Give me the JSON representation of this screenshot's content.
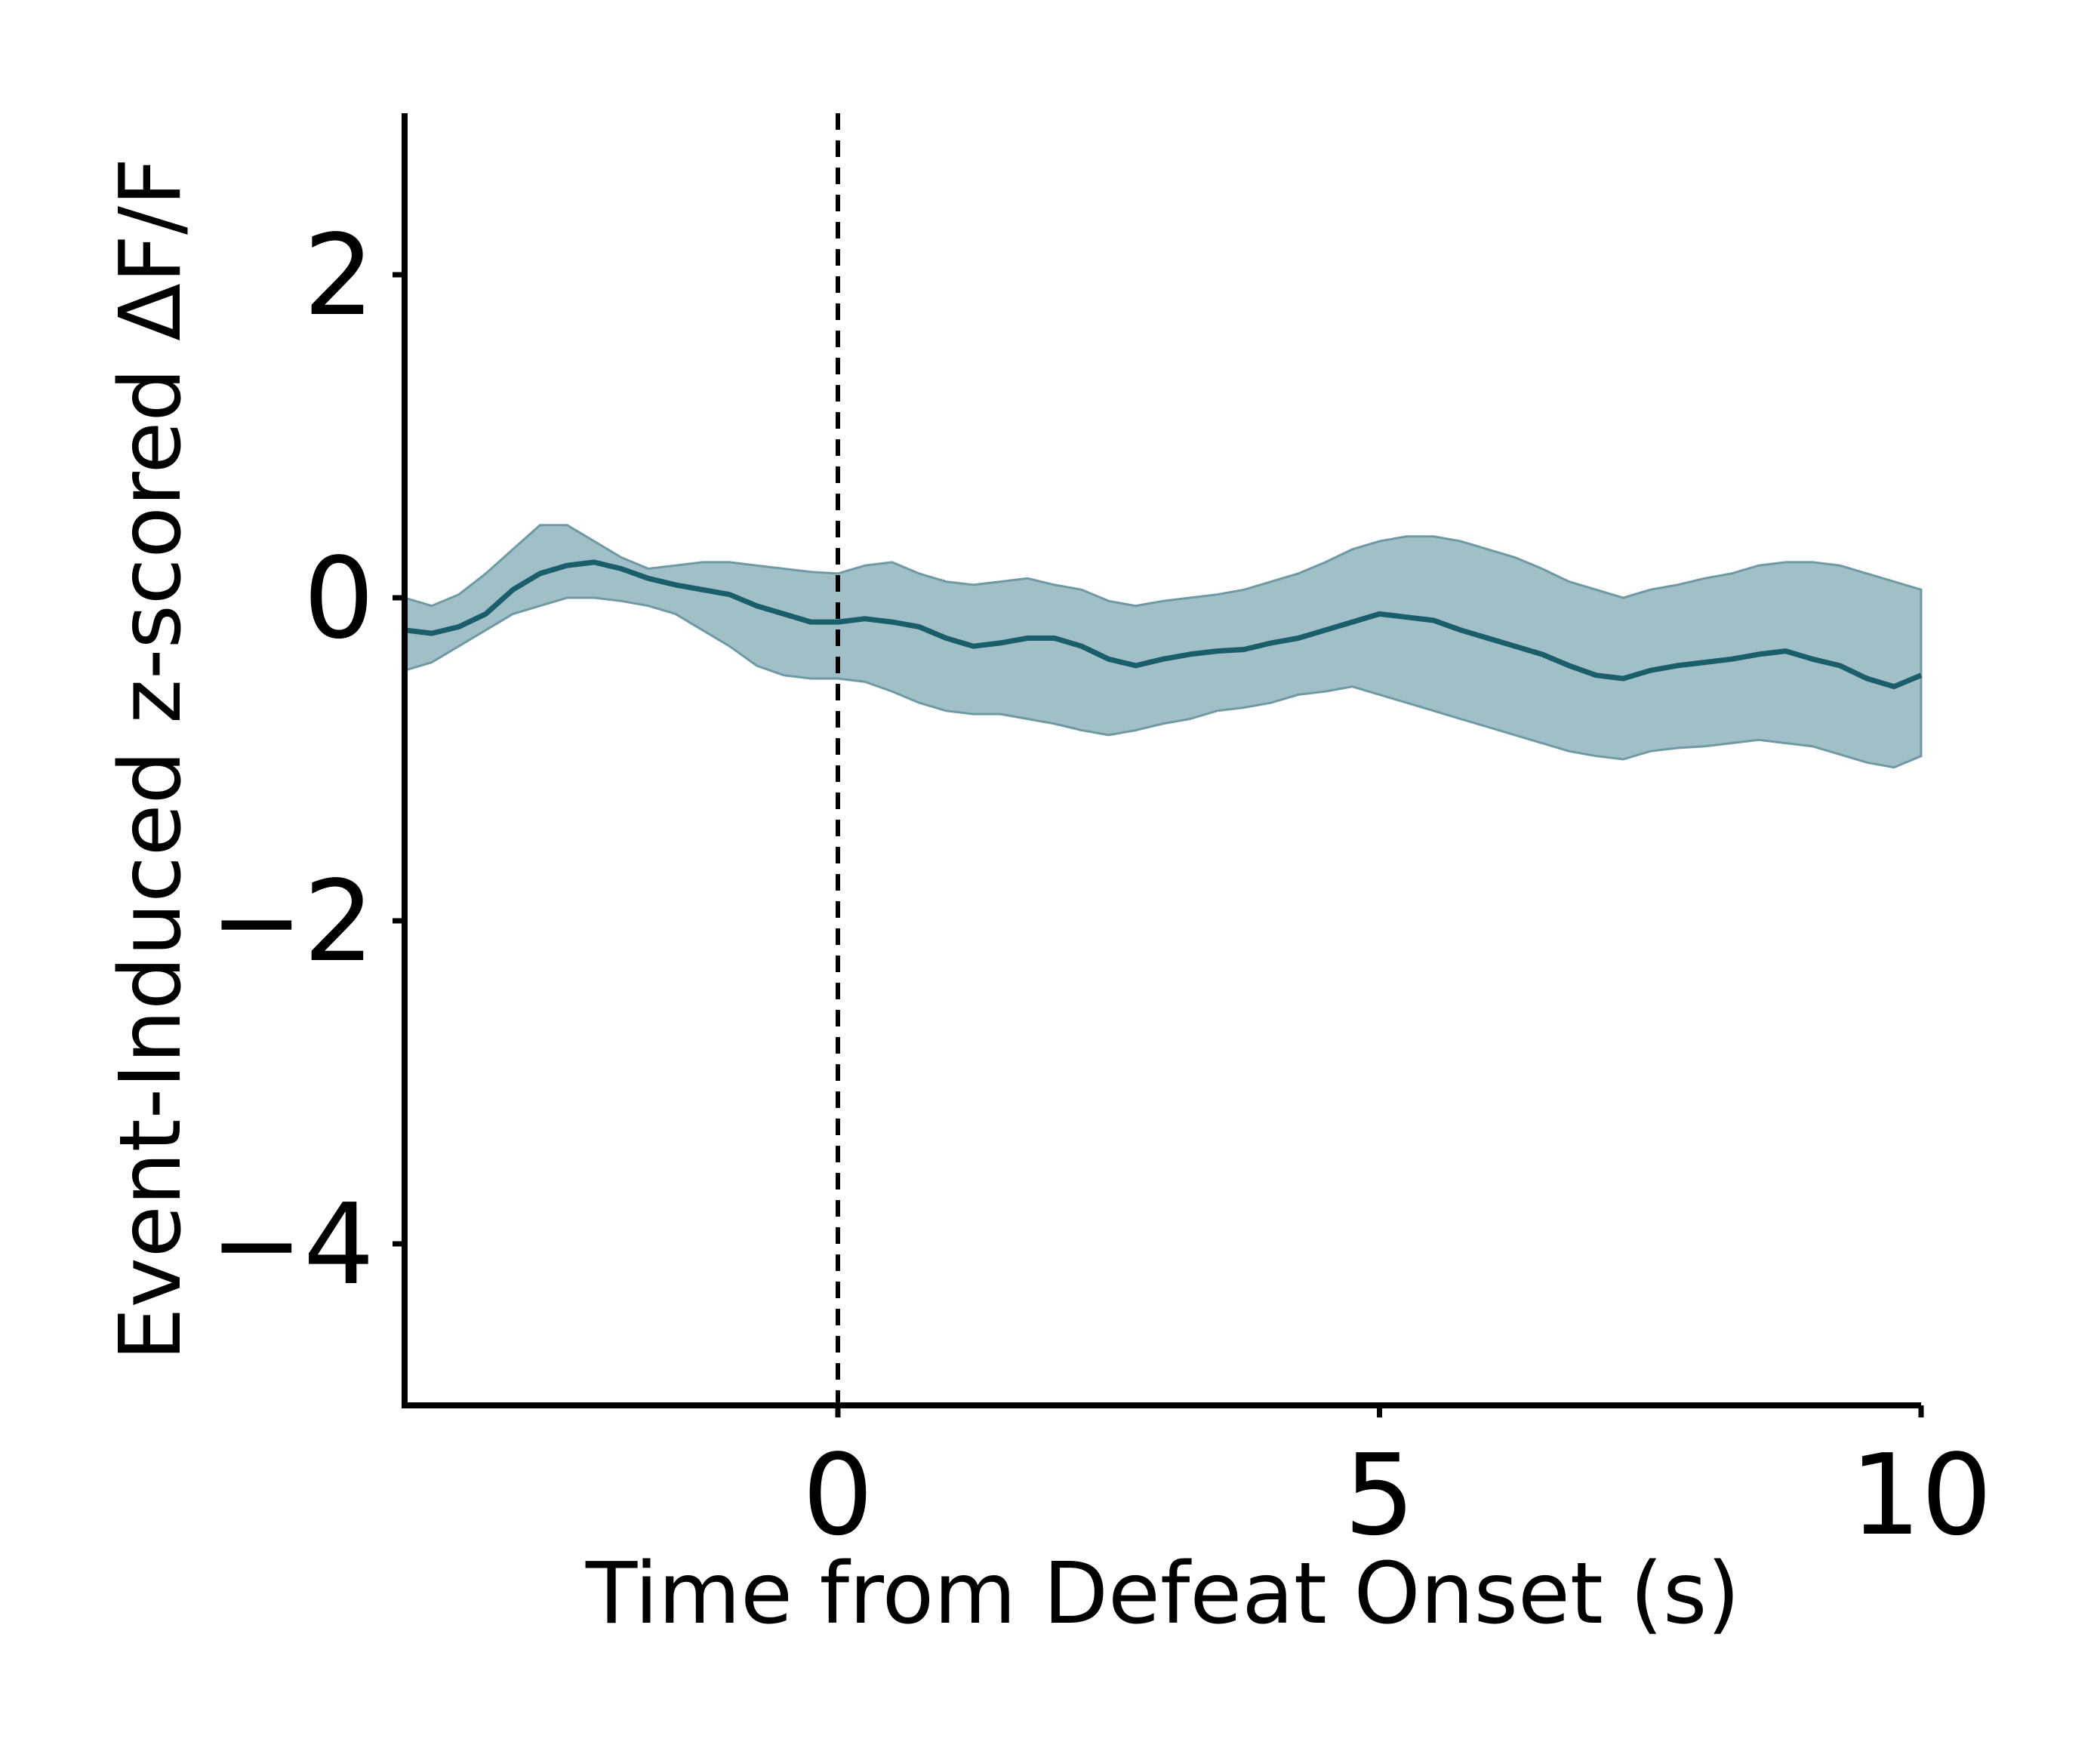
{
  "chart_data": {
    "type": "line",
    "xlabel": "Time from Defeat Onset (s)",
    "ylabel": "Event-Induced z-scored ΔF/F",
    "xlim": [
      -4,
      10
    ],
    "ylim": [
      -5,
      3
    ],
    "xticks": [
      0,
      5,
      10
    ],
    "xtick_labels": [
      "0",
      "5",
      "10"
    ],
    "yticks": [
      -4,
      -2,
      0,
      2
    ],
    "ytick_labels": [
      "−4",
      "−2",
      "0",
      "2"
    ],
    "grid": false,
    "legend": "none",
    "vline": {
      "x": 0,
      "style": "dashed",
      "color": "#000000"
    },
    "colors": {
      "line": "#1a5d6b",
      "band": "#8fb4bc",
      "band_edge": "#6f9aa4",
      "axes": "#000000"
    },
    "series": [
      {
        "x": [
          -4.0,
          -3.75,
          -3.5,
          -3.25,
          -3.0,
          -2.75,
          -2.5,
          -2.25,
          -2.0,
          -1.75,
          -1.5,
          -1.25,
          -1.0,
          -0.75,
          -0.5,
          -0.25,
          0.0,
          0.25,
          0.5,
          0.75,
          1.0,
          1.25,
          1.5,
          1.75,
          2.0,
          2.25,
          2.5,
          2.75,
          3.0,
          3.25,
          3.5,
          3.75,
          4.0,
          4.25,
          4.5,
          4.75,
          5.0,
          5.25,
          5.5,
          5.75,
          6.0,
          6.25,
          6.5,
          6.75,
          7.0,
          7.25,
          7.5,
          7.75,
          8.0,
          8.25,
          8.5,
          8.75,
          9.0,
          9.25,
          9.5,
          9.75,
          10.0
        ],
        "y": [
          -0.2,
          -0.22,
          -0.18,
          -0.1,
          0.05,
          0.15,
          0.2,
          0.22,
          0.18,
          0.12,
          0.08,
          0.05,
          0.02,
          -0.05,
          -0.1,
          -0.15,
          -0.15,
          -0.13,
          -0.15,
          -0.18,
          -0.25,
          -0.3,
          -0.28,
          -0.25,
          -0.25,
          -0.3,
          -0.38,
          -0.42,
          -0.38,
          -0.35,
          -0.33,
          -0.32,
          -0.28,
          -0.25,
          -0.2,
          -0.15,
          -0.1,
          -0.12,
          -0.14,
          -0.2,
          -0.25,
          -0.3,
          -0.35,
          -0.42,
          -0.48,
          -0.5,
          -0.45,
          -0.42,
          -0.4,
          -0.38,
          -0.35,
          -0.33,
          -0.38,
          -0.42,
          -0.5,
          -0.55,
          -0.48
        ],
        "lower": [
          -0.45,
          -0.4,
          -0.3,
          -0.2,
          -0.1,
          -0.05,
          0.0,
          0.0,
          -0.02,
          -0.05,
          -0.1,
          -0.2,
          -0.3,
          -0.42,
          -0.48,
          -0.5,
          -0.5,
          -0.52,
          -0.58,
          -0.65,
          -0.7,
          -0.72,
          -0.72,
          -0.75,
          -0.78,
          -0.82,
          -0.85,
          -0.82,
          -0.78,
          -0.75,
          -0.7,
          -0.68,
          -0.65,
          -0.6,
          -0.58,
          -0.55,
          -0.6,
          -0.65,
          -0.7,
          -0.75,
          -0.8,
          -0.85,
          -0.9,
          -0.95,
          -0.98,
          -1.0,
          -0.95,
          -0.93,
          -0.92,
          -0.9,
          -0.88,
          -0.9,
          -0.92,
          -0.97,
          -1.02,
          -1.05,
          -0.98
        ],
        "upper": [
          0.0,
          -0.05,
          0.02,
          0.15,
          0.3,
          0.45,
          0.45,
          0.35,
          0.25,
          0.18,
          0.2,
          0.22,
          0.22,
          0.2,
          0.18,
          0.16,
          0.15,
          0.2,
          0.22,
          0.15,
          0.1,
          0.08,
          0.1,
          0.12,
          0.08,
          0.05,
          -0.02,
          -0.05,
          -0.02,
          0.0,
          0.02,
          0.05,
          0.1,
          0.15,
          0.22,
          0.3,
          0.35,
          0.38,
          0.38,
          0.35,
          0.3,
          0.25,
          0.18,
          0.1,
          0.05,
          0.0,
          0.05,
          0.08,
          0.12,
          0.15,
          0.2,
          0.22,
          0.22,
          0.2,
          0.15,
          0.1,
          0.05
        ]
      }
    ]
  }
}
